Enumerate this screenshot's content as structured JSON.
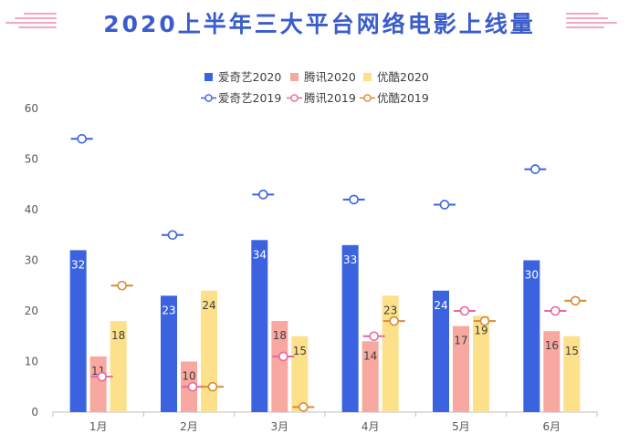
{
  "chart_data": {
    "type": "bar",
    "title": "2020上半年三大平台网络电影上线量",
    "categories": [
      "1月",
      "2月",
      "3月",
      "4月",
      "5月",
      "6月"
    ],
    "ylim": [
      0,
      60
    ],
    "yticks": [
      0,
      10,
      20,
      30,
      40,
      50,
      60
    ],
    "grid": false,
    "legend_position": "top-center",
    "series": [
      {
        "name": "爱奇艺2020",
        "kind": "bar",
        "color": "#3b63e0",
        "values": [
          32,
          23,
          34,
          33,
          24,
          30
        ]
      },
      {
        "name": "腾讯2020",
        "kind": "bar",
        "color": "#f7a8a0",
        "values": [
          11,
          10,
          18,
          14,
          17,
          16
        ]
      },
      {
        "name": "优酷2020",
        "kind": "bar",
        "color": "#fde08a",
        "values": [
          18,
          24,
          15,
          23,
          19,
          15
        ]
      },
      {
        "name": "爱奇艺2019",
        "kind": "marker",
        "color": "#3b63e0",
        "values": [
          54,
          35,
          43,
          42,
          41,
          48
        ]
      },
      {
        "name": "腾讯2019",
        "kind": "marker",
        "color": "#e8689c",
        "values": [
          7,
          5,
          11,
          15,
          20,
          20
        ]
      },
      {
        "name": "优酷2019",
        "kind": "marker",
        "color": "#d98a36",
        "values": [
          25,
          5,
          1,
          18,
          18,
          22
        ]
      }
    ]
  },
  "colors": {
    "title": "#3a5ccc",
    "axis": "#bfbfbf",
    "tick_label": "#595959",
    "deco_blue": "#a9b9ee",
    "deco_pink": "#f2a7c3"
  }
}
